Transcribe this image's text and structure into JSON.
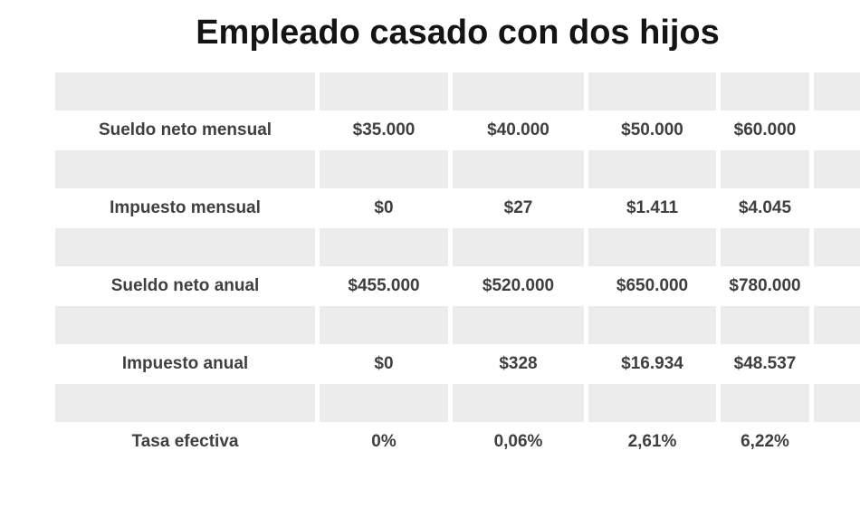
{
  "title": "Empleado casado con dos hijos",
  "chart_data": {
    "type": "table",
    "title": "Empleado casado con dos hijos",
    "rows": [
      {
        "label": "Sueldo neto mensual",
        "values": [
          "$35.000",
          "$40.000",
          "$50.000",
          "$60.000"
        ]
      },
      {
        "label": "Impuesto mensual",
        "values": [
          "$0",
          "$27",
          "$1.411",
          "$4.045"
        ]
      },
      {
        "label": "Sueldo neto anual",
        "values": [
          "$455.000",
          "$520.000",
          "$650.000",
          "$780.000"
        ]
      },
      {
        "label": "Impuesto anual",
        "values": [
          "$0",
          "$328",
          "$16.934",
          "$48.537"
        ]
      },
      {
        "label": "Tasa efectiva",
        "values": [
          "0%",
          "0,06%",
          "2,61%",
          "6,22%"
        ]
      }
    ]
  },
  "colors": {
    "stripe": "#ececec",
    "cell_text": "#3f3f3f",
    "title_text": "#141414",
    "background": "#ffffff"
  }
}
